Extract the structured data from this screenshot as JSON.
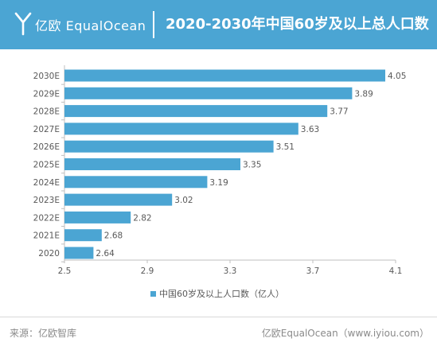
{
  "header": {
    "logo_text": "亿欧 EqualOcean",
    "title": "2020-2030年中国60岁及以上总人口数",
    "background_color": "#4ba5d3"
  },
  "chart_data": {
    "type": "bar",
    "orientation": "horizontal",
    "categories": [
      "2030E",
      "2029E",
      "2028E",
      "2027E",
      "2026E",
      "2025E",
      "2024E",
      "2023E",
      "2022E",
      "2021E",
      "2020"
    ],
    "series": [
      {
        "name": "中国60岁及以上人口数（亿人）",
        "values": [
          4.05,
          3.89,
          3.77,
          3.63,
          3.51,
          3.35,
          3.19,
          3.02,
          2.82,
          2.68,
          2.64
        ],
        "color": "#4ba5d3"
      }
    ],
    "xlim": [
      2.5,
      4.1
    ],
    "xticks": [
      "2.5",
      "2.9",
      "3.3",
      "3.7",
      "4.1"
    ],
    "grid": false,
    "legend_position": "bottom"
  },
  "footer": {
    "source": "来源：亿欧智库",
    "brand": "亿欧EqualOcean（www.iyiou.com）"
  }
}
